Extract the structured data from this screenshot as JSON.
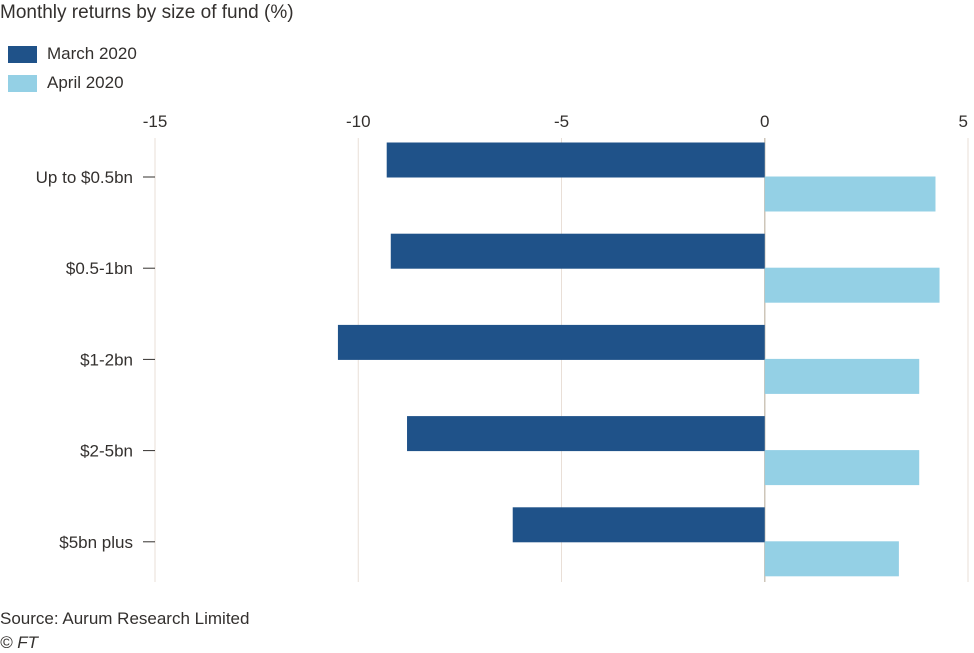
{
  "chart_data": {
    "type": "bar",
    "orientation": "horizontal",
    "title": "Monthly returns by size of fund (%)",
    "categories": [
      "Up to $0.5bn",
      "$0.5-1bn",
      "$1-2bn",
      "$2-5bn",
      "$5bn plus"
    ],
    "series": [
      {
        "name": "March 2020",
        "color": "#1f5289",
        "values": [
          -9.3,
          -9.2,
          -10.5,
          -8.8,
          -6.2
        ]
      },
      {
        "name": "April 2020",
        "color": "#94d0e5",
        "values": [
          4.2,
          4.3,
          3.8,
          3.8,
          3.3
        ]
      }
    ],
    "xlim": [
      -15,
      5
    ],
    "xticks": [
      -15,
      -10,
      -5,
      0,
      5
    ],
    "xtick_labels": [
      "-15",
      "-10",
      "-5",
      "0",
      "5"
    ],
    "xaxis_position": "top",
    "grid": true,
    "legend_placement": "top-left"
  },
  "footer": {
    "source": "Source: Aurum Research Limited",
    "credit": "© FT"
  }
}
